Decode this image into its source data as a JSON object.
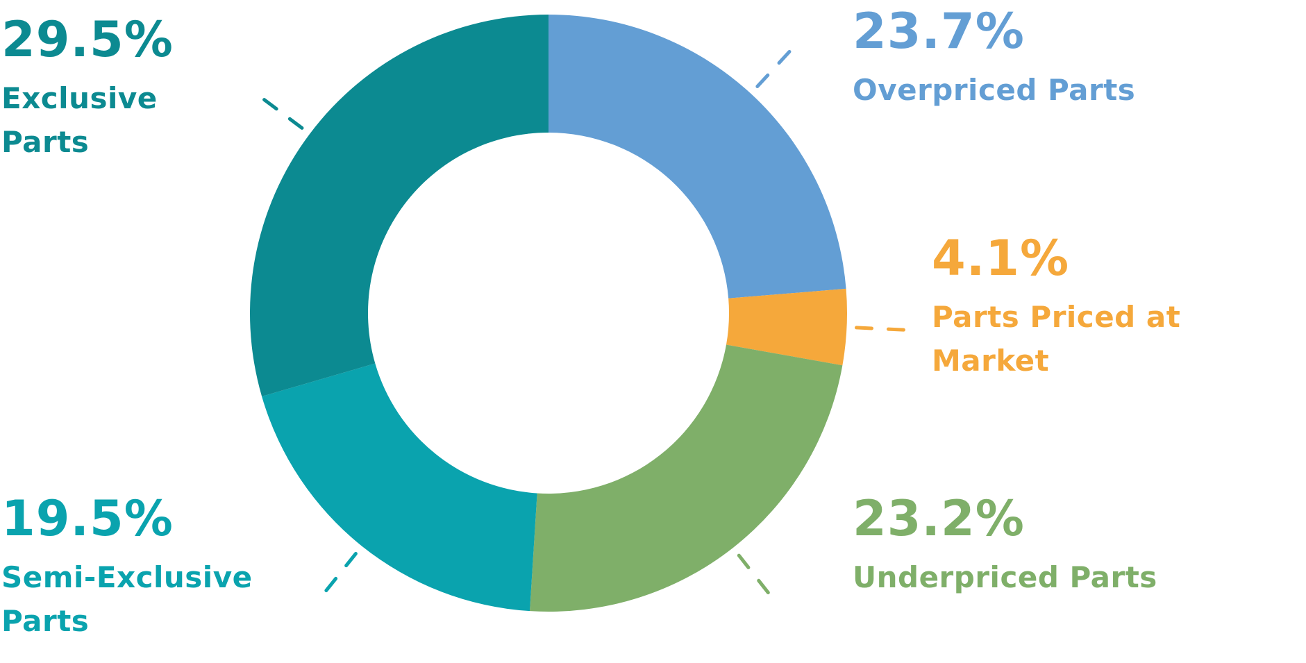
{
  "chart_data": {
    "type": "pie",
    "variant": "donut",
    "title": "",
    "slices": [
      {
        "label": "Overpriced Parts",
        "value": 23.7,
        "display": "23.7%",
        "color": "#639ed4"
      },
      {
        "label": "Parts Priced at Market",
        "value": 4.1,
        "display": "4.1%",
        "color": "#f5a83b"
      },
      {
        "label": "Underpriced Parts",
        "value": 23.2,
        "display": "23.2%",
        "color": "#7faf69"
      },
      {
        "label": "Semi-Exclusive Parts",
        "value": 19.5,
        "display": "19.5%",
        "color": "#0aa3ae"
      },
      {
        "label": "Exclusive Parts",
        "value": 29.5,
        "display": "29.5%",
        "color": "#0c8a91"
      }
    ],
    "legend": "none",
    "data_labels": "outside-with-dashed-leaders"
  }
}
